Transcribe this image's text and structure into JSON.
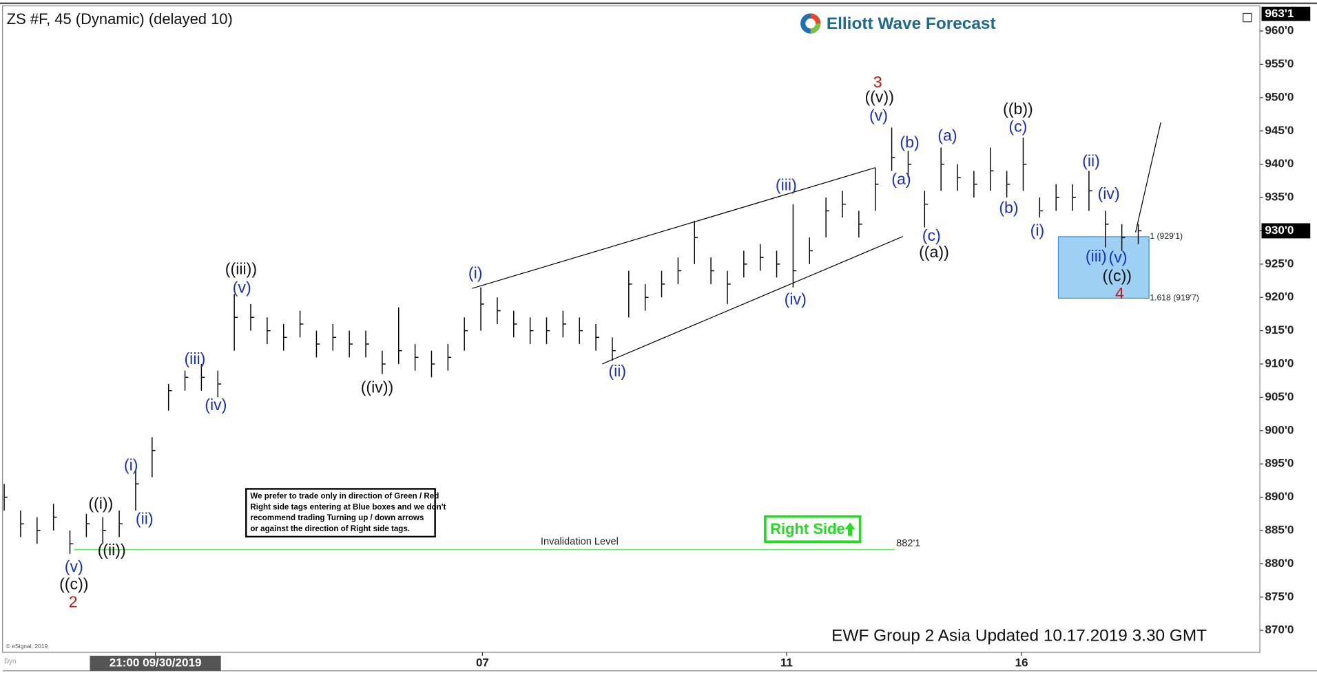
{
  "chart_data": {
    "type": "ohlc",
    "title": "ZS #F, 45 (Dynamic) (delayed 10)",
    "logo": "Elliott Wave Forecast",
    "footer": "EWF Group 2 Asia Updated 10.17.2019 3.30 GMT",
    "copyright": "© eSignal, 2019",
    "watermark": "Dyn",
    "bar_color": "#000000",
    "box_color": "#8cc8f0",
    "close": [
      890,
      886,
      885,
      887,
      883,
      886,
      885,
      886,
      892,
      897,
      906,
      908,
      908,
      907,
      917,
      917,
      915,
      914,
      916,
      913,
      914,
      913,
      913,
      910,
      912,
      911,
      910,
      911,
      915,
      919,
      918,
      916,
      915,
      915,
      916,
      915,
      914,
      912,
      922,
      920,
      922,
      924,
      929,
      924,
      922,
      925,
      926,
      925,
      924,
      927,
      933,
      934,
      931,
      937,
      941,
      940,
      934,
      940,
      938,
      937,
      939,
      937,
      940,
      933,
      935,
      935,
      936,
      931,
      929,
      930
    ],
    "high": [
      892,
      888,
      887,
      889,
      885,
      887.5,
      887,
      888,
      894,
      899,
      907,
      909,
      910,
      909,
      920.5,
      919,
      917,
      916,
      918,
      915,
      916,
      915,
      915,
      912,
      918.5,
      913,
      912,
      913,
      917,
      921.5,
      920,
      918,
      917,
      917,
      918,
      917,
      916,
      914,
      924,
      922,
      924,
      926,
      931.5,
      926,
      924,
      927,
      928,
      927,
      934,
      929,
      935,
      936,
      933,
      939.5,
      945.5,
      942,
      936,
      942.5,
      940,
      939,
      942.5,
      939,
      944,
      935,
      937,
      937,
      939,
      933,
      931,
      931
    ],
    "low": [
      888,
      884,
      883,
      885,
      881.5,
      884,
      883,
      884,
      888,
      893,
      903,
      906,
      906,
      905,
      912,
      915,
      913,
      912,
      914,
      911,
      912,
      911,
      911,
      908.5,
      910,
      909,
      908,
      909,
      912,
      915,
      916,
      914,
      913,
      913,
      914,
      913,
      912,
      910.5,
      917,
      918,
      920,
      922,
      925,
      922,
      919,
      923,
      924,
      923,
      921.5,
      925,
      929,
      932,
      929,
      933,
      939,
      938,
      930.5,
      936,
      936,
      935,
      936,
      935,
      936,
      932,
      933,
      933,
      933,
      927.5,
      927,
      928
    ],
    "xlim": [
      -0.05,
      76.4
    ],
    "xticks": [
      {
        "value": 9.2,
        "label": "21:00 09/30/2019"
      },
      {
        "value": 29.1,
        "label": "07"
      },
      {
        "value": 47.6,
        "label": "11"
      },
      {
        "value": 61.9,
        "label": "16"
      }
    ],
    "ylim": [
      866.7,
      963.65
    ],
    "yticks": [
      {
        "value": 870,
        "label": "870'0"
      },
      {
        "value": 875,
        "label": "875'0"
      },
      {
        "value": 880,
        "label": "880'0"
      },
      {
        "value": 885,
        "label": "885'0"
      },
      {
        "value": 890,
        "label": "890'0"
      },
      {
        "value": 895,
        "label": "895'0"
      },
      {
        "value": 900,
        "label": "900'0"
      },
      {
        "value": 905,
        "label": "905'0"
      },
      {
        "value": 910,
        "label": "910'0"
      },
      {
        "value": 915,
        "label": "915'0"
      },
      {
        "value": 920,
        "label": "920'0"
      },
      {
        "value": 925,
        "label": "925'0"
      },
      {
        "value": 930,
        "label": "930'0"
      },
      {
        "value": 935,
        "label": "935'0"
      },
      {
        "value": 940,
        "label": "940'0"
      },
      {
        "value": 945,
        "label": "945'0"
      },
      {
        "value": 950,
        "label": "950'0"
      },
      {
        "value": 955,
        "label": "955'0"
      },
      {
        "value": 960,
        "label": "960'0"
      }
    ],
    "axis_top_label": "963'1",
    "last_price": {
      "value": 930,
      "label": "930'0"
    },
    "invalidation": {
      "value": 882.125,
      "label": "882'1",
      "text": "Invalidation Level"
    },
    "targets": [
      {
        "value": 929.125,
        "label": "1 (929'1)"
      },
      {
        "value": 919.875,
        "label": "1.618 (919'7)"
      }
    ],
    "right_side_tag": "Right Side",
    "disclaimer": [
      "We prefer to trade only in direction of Green / Red",
      "Right side tags entering at Blue boxes and we don't",
      "recommend trading Turning up / down arrows",
      "or against the direction of Right side tags."
    ],
    "annotations": [
      "((i))",
      "((ii))",
      "((iii))",
      "((iv))",
      "((c))",
      "((v))",
      "((a))",
      "((b))",
      "((c))",
      "(v)",
      "(i)",
      "(ii)",
      "(iii)",
      "(iv)",
      "(v)",
      "(i)",
      "(ii)",
      "(iii)",
      "(iv)",
      "(v)",
      "(b)",
      "(a)",
      "(c)",
      "(a)",
      "(c)",
      "(b)",
      "(i)",
      "(ii)",
      "(iv)",
      "(iii)",
      "(v)",
      "2",
      "3",
      "4"
    ]
  }
}
